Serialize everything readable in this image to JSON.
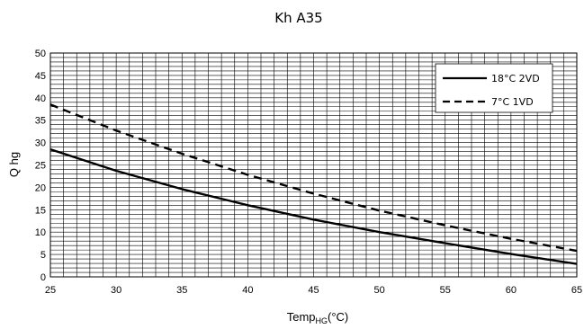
{
  "chart_data": {
    "type": "line",
    "title": "Kh A35",
    "xlabel": {
      "main": "Temp",
      "sub": "HG",
      "unit": "(°C)"
    },
    "ylabel": "Q hg",
    "xlim": [
      25,
      65
    ],
    "ylim": [
      0,
      50
    ],
    "x_ticks": [
      25,
      30,
      35,
      40,
      45,
      50,
      55,
      60,
      65
    ],
    "y_ticks": [
      0,
      5,
      10,
      15,
      20,
      25,
      30,
      35,
      40,
      45,
      50
    ],
    "x_minor_step": 1,
    "y_minor_step": 1,
    "grid": true,
    "legend_position": "top-right",
    "series": [
      {
        "name": "18°C 2VD",
        "style": "solid",
        "color": "#000000",
        "x": [
          25,
          30,
          35,
          40,
          45,
          50,
          55,
          60,
          65
        ],
        "y": [
          28.5,
          23.7,
          19.6,
          16.0,
          12.8,
          10.0,
          7.5,
          5.1,
          2.9
        ]
      },
      {
        "name": "7°C 1VD",
        "style": "dashed",
        "color": "#000000",
        "x": [
          25,
          30,
          35,
          40,
          45,
          50,
          55,
          60,
          65
        ],
        "y": [
          38.5,
          32.7,
          27.5,
          22.8,
          18.6,
          14.8,
          11.5,
          8.5,
          5.8
        ]
      }
    ]
  }
}
